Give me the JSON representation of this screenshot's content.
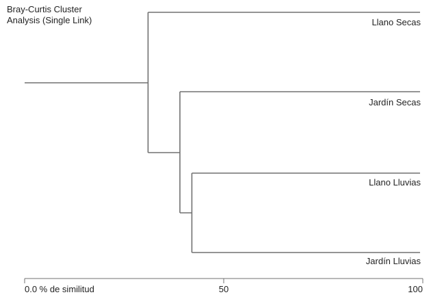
{
  "title": {
    "line1": "Bray-Curtis Cluster",
    "line2": "Analysis (Single Link)"
  },
  "leaves": [
    {
      "label": "Llano Secas"
    },
    {
      "label": "Jardín Secas"
    },
    {
      "label": "Llano Lluvias"
    },
    {
      "label": "Jardín Lluvias"
    }
  ],
  "axis": {
    "ticks": [
      {
        "value": 0,
        "label": "0.0 % de similitud"
      },
      {
        "value": 50,
        "label": "50"
      },
      {
        "value": 100,
        "label": "100"
      }
    ],
    "range": [
      0,
      100
    ]
  },
  "merges": [
    {
      "members": [
        "Llano Lluvias",
        "Jardín Lluvias"
      ],
      "similarity": 42
    },
    {
      "members": [
        "Jardín Secas",
        "Llano Lluvias + Jardín Lluvias"
      ],
      "similarity": 39
    },
    {
      "members": [
        "Llano Secas",
        "Jardín Secas + Llano Lluvias + Jardín Lluvias"
      ],
      "similarity": 31
    }
  ],
  "colors": {
    "branch": "#707070",
    "text": "#222222"
  }
}
